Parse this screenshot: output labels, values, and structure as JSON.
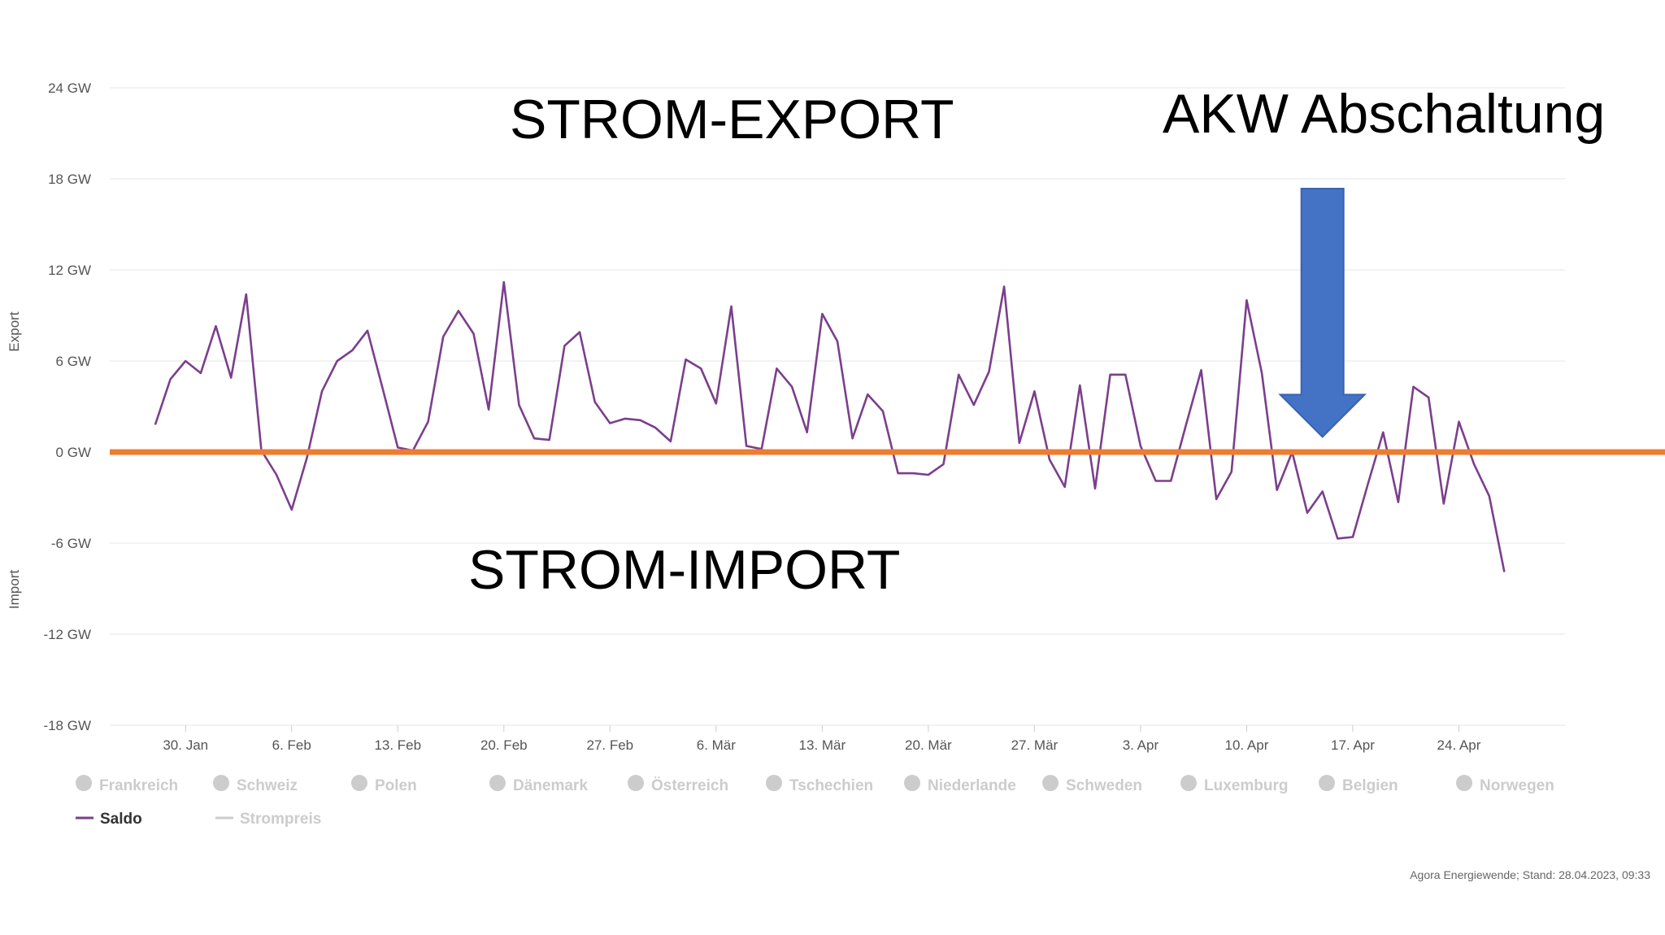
{
  "chart_data": {
    "type": "line",
    "ylabel_top": "Export",
    "ylabel_bottom": "Import",
    "ylim": [
      -18,
      24
    ],
    "y_ticks": [
      {
        "value": 24,
        "label": "24 GW"
      },
      {
        "value": 18,
        "label": "18 GW"
      },
      {
        "value": 12,
        "label": "12 GW"
      },
      {
        "value": 6,
        "label": "6 GW"
      },
      {
        "value": 0,
        "label": "0 GW"
      },
      {
        "value": -6,
        "label": "-6 GW"
      },
      {
        "value": -12,
        "label": "-12 GW"
      },
      {
        "value": -18,
        "label": "-18 GW"
      }
    ],
    "x_range": [
      "2023-01-25",
      "2023-05-01"
    ],
    "x_ticks": [
      {
        "date": "2023-01-30",
        "label": "30. Jan"
      },
      {
        "date": "2023-02-06",
        "label": "6. Feb"
      },
      {
        "date": "2023-02-13",
        "label": "13. Feb"
      },
      {
        "date": "2023-02-20",
        "label": "20. Feb"
      },
      {
        "date": "2023-02-27",
        "label": "27. Feb"
      },
      {
        "date": "2023-03-06",
        "label": "6. Mär"
      },
      {
        "date": "2023-03-13",
        "label": "13. Mär"
      },
      {
        "date": "2023-03-20",
        "label": "20. Mär"
      },
      {
        "date": "2023-03-27",
        "label": "27. Mär"
      },
      {
        "date": "2023-04-03",
        "label": "3. Apr"
      },
      {
        "date": "2023-04-10",
        "label": "10. Apr"
      },
      {
        "date": "2023-04-17",
        "label": "17. Apr"
      },
      {
        "date": "2023-04-24",
        "label": "24. Apr"
      }
    ],
    "grid": true,
    "series": [
      {
        "name": "Saldo",
        "color": "#7b3f8c",
        "points": [
          [
            "2023-01-28",
            1.8
          ],
          [
            "2023-01-29",
            4.8
          ],
          [
            "2023-01-30",
            6.0
          ],
          [
            "2023-01-31",
            5.2
          ],
          [
            "2023-02-01",
            8.3
          ],
          [
            "2023-02-02",
            4.9
          ],
          [
            "2023-02-03",
            10.4
          ],
          [
            "2023-02-04",
            0.1
          ],
          [
            "2023-02-05",
            -1.5
          ],
          [
            "2023-02-06",
            -3.8
          ],
          [
            "2023-02-07",
            -0.4
          ],
          [
            "2023-02-08",
            4.0
          ],
          [
            "2023-02-09",
            6.0
          ],
          [
            "2023-02-10",
            6.7
          ],
          [
            "2023-02-11",
            8.0
          ],
          [
            "2023-02-12",
            4.2
          ],
          [
            "2023-02-13",
            0.3
          ],
          [
            "2023-02-14",
            0.1
          ],
          [
            "2023-02-15",
            2.0
          ],
          [
            "2023-02-16",
            7.6
          ],
          [
            "2023-02-17",
            9.3
          ],
          [
            "2023-02-18",
            7.8
          ],
          [
            "2023-02-19",
            2.8
          ],
          [
            "2023-02-20",
            11.2
          ],
          [
            "2023-02-21",
            3.1
          ],
          [
            "2023-02-22",
            0.9
          ],
          [
            "2023-02-23",
            0.8
          ],
          [
            "2023-02-24",
            7.0
          ],
          [
            "2023-02-25",
            7.9
          ],
          [
            "2023-02-26",
            3.3
          ],
          [
            "2023-02-27",
            1.9
          ],
          [
            "2023-02-28",
            2.2
          ],
          [
            "2023-03-01",
            2.1
          ],
          [
            "2023-03-02",
            1.6
          ],
          [
            "2023-03-03",
            0.7
          ],
          [
            "2023-03-04",
            6.1
          ],
          [
            "2023-03-05",
            5.5
          ],
          [
            "2023-03-06",
            3.2
          ],
          [
            "2023-03-07",
            9.6
          ],
          [
            "2023-03-08",
            0.4
          ],
          [
            "2023-03-09",
            0.2
          ],
          [
            "2023-03-10",
            5.5
          ],
          [
            "2023-03-11",
            4.3
          ],
          [
            "2023-03-12",
            1.3
          ],
          [
            "2023-03-13",
            9.1
          ],
          [
            "2023-03-14",
            7.3
          ],
          [
            "2023-03-15",
            0.9
          ],
          [
            "2023-03-16",
            3.8
          ],
          [
            "2023-03-17",
            2.7
          ],
          [
            "2023-03-18",
            -1.4
          ],
          [
            "2023-03-19",
            -1.4
          ],
          [
            "2023-03-20",
            -1.5
          ],
          [
            "2023-03-21",
            -0.8
          ],
          [
            "2023-03-22",
            5.1
          ],
          [
            "2023-03-23",
            3.1
          ],
          [
            "2023-03-24",
            5.3
          ],
          [
            "2023-03-25",
            10.9
          ],
          [
            "2023-03-26",
            0.6
          ],
          [
            "2023-03-27",
            4.0
          ],
          [
            "2023-03-28",
            -0.5
          ],
          [
            "2023-03-29",
            -2.3
          ],
          [
            "2023-03-30",
            4.4
          ],
          [
            "2023-03-31",
            -2.4
          ],
          [
            "2023-04-01",
            5.1
          ],
          [
            "2023-04-02",
            5.1
          ],
          [
            "2023-04-03",
            0.4
          ],
          [
            "2023-04-04",
            -1.9
          ],
          [
            "2023-04-05",
            -1.9
          ],
          [
            "2023-04-06",
            1.8
          ],
          [
            "2023-04-07",
            5.4
          ],
          [
            "2023-04-08",
            -3.1
          ],
          [
            "2023-04-09",
            -1.3
          ],
          [
            "2023-04-10",
            10.0
          ],
          [
            "2023-04-11",
            5.2
          ],
          [
            "2023-04-12",
            -2.5
          ],
          [
            "2023-04-13",
            0.0
          ],
          [
            "2023-04-14",
            -4.0
          ],
          [
            "2023-04-15",
            -2.6
          ],
          [
            "2023-04-16",
            -5.7
          ],
          [
            "2023-04-17",
            -5.6
          ],
          [
            "2023-04-18",
            -2.1
          ],
          [
            "2023-04-19",
            1.3
          ],
          [
            "2023-04-20",
            -3.3
          ],
          [
            "2023-04-21",
            4.3
          ],
          [
            "2023-04-22",
            3.6
          ],
          [
            "2023-04-23",
            -3.4
          ],
          [
            "2023-04-24",
            2.0
          ],
          [
            "2023-04-25",
            -0.8
          ],
          [
            "2023-04-26",
            -2.9
          ],
          [
            "2023-04-27",
            -7.9
          ]
        ]
      }
    ],
    "zero_line": {
      "value": 0,
      "color": "#ed7d31"
    },
    "legend": {
      "placement": "bottom",
      "items": [
        {
          "label": "Frankreich",
          "symbol": "circle",
          "active": false
        },
        {
          "label": "Schweiz",
          "symbol": "circle",
          "active": false
        },
        {
          "label": "Polen",
          "symbol": "circle",
          "active": false
        },
        {
          "label": "Dänemark",
          "symbol": "circle",
          "active": false
        },
        {
          "label": "Österreich",
          "symbol": "circle",
          "active": false
        },
        {
          "label": "Tschechien",
          "symbol": "circle",
          "active": false
        },
        {
          "label": "Niederlande",
          "symbol": "circle",
          "active": false
        },
        {
          "label": "Schweden",
          "symbol": "circle",
          "active": false
        },
        {
          "label": "Luxemburg",
          "symbol": "circle",
          "active": false
        },
        {
          "label": "Belgien",
          "symbol": "circle",
          "active": false
        },
        {
          "label": "Norwegen",
          "symbol": "circle",
          "active": false
        },
        {
          "label": "Saldo",
          "symbol": "line",
          "active": true,
          "color": "#7b3f8c"
        },
        {
          "label": "Strompreis",
          "symbol": "line",
          "active": false
        }
      ]
    },
    "annotations": {
      "export_label": "STROM-EXPORT",
      "import_label": "STROM-IMPORT",
      "shutdown_label": "AKW Abschaltung",
      "arrow_color": "#4472c4",
      "arrow_date": "2023-04-15",
      "arrow_tip_value": 1.0
    },
    "source": "Agora Energiewende; Stand: 28.04.2023, 09:33"
  }
}
